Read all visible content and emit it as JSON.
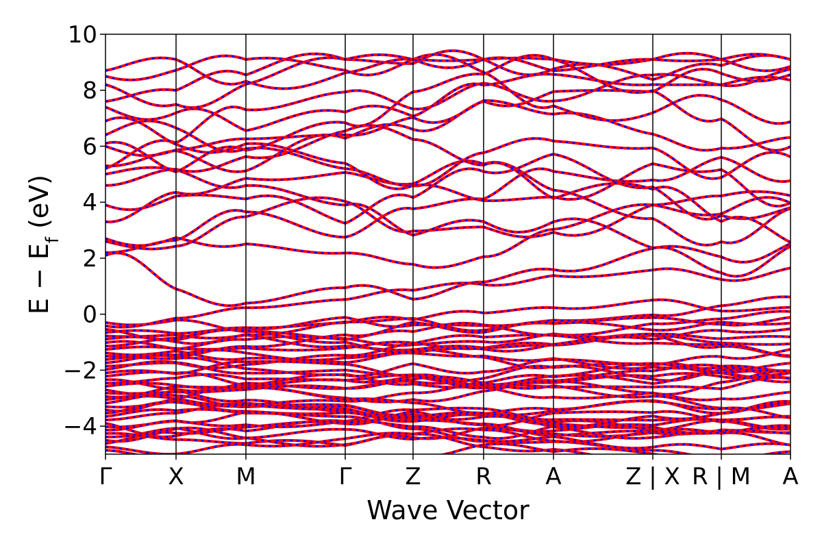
{
  "chart_data": {
    "type": "line",
    "title": "",
    "xlabel": "Wave Vector",
    "ylabel_main": "E − E",
    "ylabel_sub": "f",
    "ylabel_unit": " (eV)",
    "ylim": [
      -5,
      10
    ],
    "yticks": [
      -4,
      -2,
      0,
      2,
      4,
      6,
      8,
      10
    ],
    "ytick_labels": [
      "−4",
      "−2",
      "0",
      "2",
      "4",
      "6",
      "8",
      "10"
    ],
    "path_segments": [
      "Γ",
      "X",
      "M",
      "Γ",
      "Z",
      "R",
      "A",
      "Z",
      "X",
      "R",
      "M",
      "A"
    ],
    "xtick_labels": [
      "Γ",
      "X",
      "M",
      "Γ",
      "Z",
      "R",
      "A",
      "Z | X",
      "R | M",
      "A"
    ],
    "series_colors": [
      "#ff0000",
      "#0000ff"
    ],
    "series_styles": [
      "solid",
      "dashed"
    ],
    "grid": false,
    "legend": "none",
    "bands_above_fermi_at_gamma": [
      2.1,
      2.2,
      2.6,
      2.7,
      3.3,
      5.2,
      5.3,
      6.0,
      6.1,
      7.4,
      7.6,
      8.2,
      8.7
    ],
    "bands_above_fermi_at_A": [
      0.4,
      0.8,
      2.2,
      5.3,
      5.5,
      6.2,
      6.4,
      7.3,
      8.0,
      8.8
    ],
    "valence_region": [
      -5,
      -0.3
    ]
  }
}
